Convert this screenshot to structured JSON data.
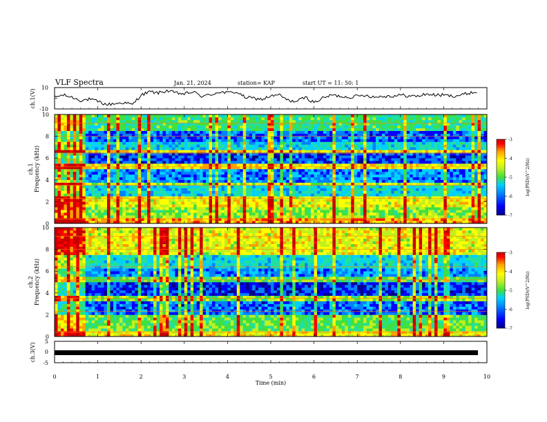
{
  "header": {
    "title": "VLF Spectra",
    "date": "Jan. 21, 2024",
    "station": "station= KAP",
    "start": "start UT =  11: 50: 1"
  },
  "colors": {
    "background": "#ffffff",
    "axes": "#000000",
    "trace": "#000000",
    "colormap": [
      "#00008b",
      "#0000ff",
      "#0080ff",
      "#00d0ff",
      "#20e0a0",
      "#40e040",
      "#c0f020",
      "#ffff00",
      "#ffa000",
      "#ff0000",
      "#c80000"
    ]
  },
  "chart_data": [
    {
      "type": "line",
      "ylabel": "ch.1(V)",
      "ylim": [
        -10,
        10
      ],
      "yticks": [
        "10",
        "-10"
      ],
      "xlim": [
        0,
        10
      ],
      "series": [
        {
          "x": [
            0,
            0.2,
            0.4,
            0.6,
            0.8,
            1.0,
            1.2,
            1.4,
            1.6,
            1.8,
            2.0,
            2.2,
            2.4,
            2.6,
            2.8,
            3.0,
            3.2,
            3.4,
            3.6,
            3.8,
            4.0,
            4.2,
            4.4,
            4.6,
            4.8,
            5.0,
            5.2,
            5.4,
            5.6,
            5.8,
            6.0,
            6.2,
            6.4,
            6.6,
            6.8,
            7.0,
            7.2,
            7.4,
            7.6,
            7.8,
            8.0,
            8.2,
            8.4,
            8.6,
            8.8,
            9.0,
            9.2,
            9.4,
            9.6,
            9.8
          ],
          "y": [
            1,
            3,
            1,
            -2,
            -1,
            -3,
            -6,
            -5,
            -4,
            -6,
            3,
            6,
            5,
            7,
            5,
            4,
            6,
            2,
            3,
            6,
            5,
            6,
            1,
            0,
            -1,
            2,
            3,
            -2,
            -3,
            1,
            -4,
            0,
            3,
            2,
            1,
            2,
            3,
            1,
            2,
            2,
            3,
            2,
            2,
            4,
            3,
            3,
            2,
            3,
            5,
            6
          ]
        }
      ]
    },
    {
      "type": "heatmap",
      "ylabel": "ch.1\nFrequency (kHz)",
      "ylim": [
        0,
        10
      ],
      "yticks": [
        "0",
        "2",
        "4",
        "6",
        "8",
        "10"
      ],
      "xlim": [
        0,
        10
      ],
      "colorbar": {
        "label": "log(PSD)(V^2/Hz)",
        "range": [
          -7,
          -3
        ],
        "ticks": [
          "-3",
          "-4",
          "-5",
          "-6",
          "-7"
        ]
      },
      "band_levels": [
        {
          "f_range": [
            0,
            0.5
          ],
          "level": -4.0
        },
        {
          "f_range": [
            0.5,
            1.5
          ],
          "level": -4.8
        },
        {
          "f_range": [
            1.5,
            2.5
          ],
          "level": -4.4
        },
        {
          "f_range": [
            2.5,
            3.3
          ],
          "level": -5.6
        },
        {
          "f_range": [
            3.3,
            3.7
          ],
          "level": -4.6
        },
        {
          "f_range": [
            3.7,
            5.0
          ],
          "level": -6.0
        },
        {
          "f_range": [
            5.0,
            5.4
          ],
          "level": -4.3
        },
        {
          "f_range": [
            5.4,
            6.3
          ],
          "level": -6.3
        },
        {
          "f_range": [
            6.3,
            6.6
          ],
          "level": -4.2
        },
        {
          "f_range": [
            6.6,
            7.5
          ],
          "level": -5.6
        },
        {
          "f_range": [
            7.5,
            8.5
          ],
          "level": -6.2
        },
        {
          "f_range": [
            8.5,
            10.0
          ],
          "level": -5.2
        }
      ]
    },
    {
      "type": "heatmap",
      "ylabel": "ch.2\nFrequency (kHz)",
      "ylim": [
        0,
        10
      ],
      "yticks": [
        "0",
        "2",
        "4",
        "6",
        "8",
        "10"
      ],
      "xlim": [
        0,
        10
      ],
      "colorbar": {
        "label": "log(PSD)(V^2/Hz)",
        "range": [
          -7,
          -3
        ],
        "ticks": [
          "-3",
          "-4",
          "-5",
          "-6",
          "-7"
        ]
      },
      "band_levels": [
        {
          "f_range": [
            0,
            0.4
          ],
          "level": -4.3
        },
        {
          "f_range": [
            0.4,
            2.0
          ],
          "level": -5.0
        },
        {
          "f_range": [
            2.0,
            3.2
          ],
          "level": -6.2
        },
        {
          "f_range": [
            3.2,
            3.6
          ],
          "level": -4.8
        },
        {
          "f_range": [
            3.6,
            4.8
          ],
          "level": -6.4
        },
        {
          "f_range": [
            4.8,
            5.3
          ],
          "level": -5.0
        },
        {
          "f_range": [
            5.3,
            6.2
          ],
          "level": -6.0
        },
        {
          "f_range": [
            6.2,
            7.5
          ],
          "level": -5.6
        },
        {
          "f_range": [
            7.5,
            10.0
          ],
          "level": -4.4
        }
      ]
    },
    {
      "type": "line",
      "ylabel": "ch.3(V)",
      "ylim": [
        -5,
        5
      ],
      "yticks": [
        "5",
        "0",
        "-5"
      ],
      "xlim": [
        0,
        10
      ],
      "xlabel": "Time (min)",
      "xticks": [
        "0",
        "1",
        "2",
        "3",
        "4",
        "5",
        "6",
        "7",
        "8",
        "9",
        "10"
      ],
      "series": [
        {
          "x": [
            0,
            10
          ],
          "y": [
            0,
            0
          ]
        }
      ]
    }
  ]
}
